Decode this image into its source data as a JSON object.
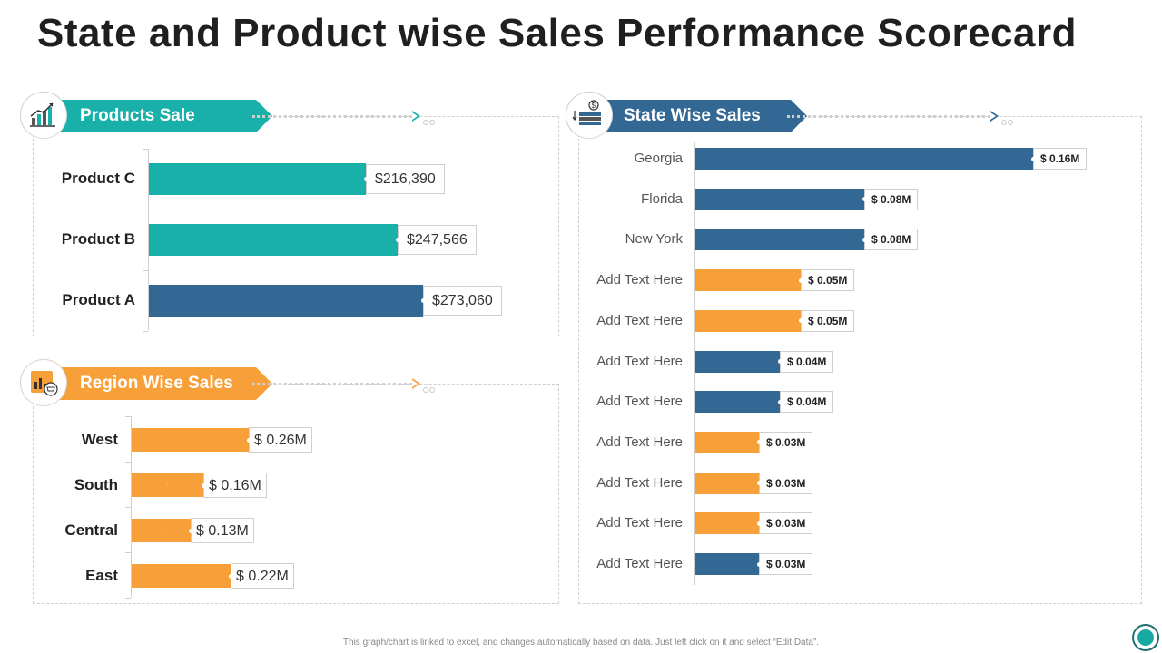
{
  "title": "State and Product wise Sales Performance Scorecard",
  "colors": {
    "teal": "#19b0aa",
    "blue": "#336895",
    "orange": "#f7a03a"
  },
  "products_section": {
    "header": "Products Sale",
    "icon": "growth-chart-icon"
  },
  "region_section": {
    "header": "Region Wise Sales",
    "icon": "bar-chart-cart-icon"
  },
  "state_section": {
    "header": "State Wise Sales",
    "icon": "money-stack-icon"
  },
  "chart_data": [
    {
      "type": "bar",
      "orientation": "horizontal",
      "title": "Products Sale",
      "categories": [
        "Product C",
        "Product B",
        "Product A"
      ],
      "values": [
        216390,
        247566,
        273060
      ],
      "labels": [
        "$216,390",
        "$247,566",
        "$273,060"
      ],
      "bar_colors": [
        "#19b0aa",
        "#19b0aa",
        "#336895"
      ]
    },
    {
      "type": "bar",
      "orientation": "horizontal",
      "title": "Region Wise Sales",
      "categories": [
        "West",
        "South",
        "Central",
        "East"
      ],
      "values": [
        0.26,
        0.16,
        0.13,
        0.22
      ],
      "unit": "$M",
      "labels": [
        "$ 0.26M",
        "$ 0.16M",
        "$ 0.13M",
        "$ 0.22M"
      ],
      "bar_colors": [
        "#f7a03a",
        "#f7a03a",
        "#f7a03a",
        "#f7a03a"
      ]
    },
    {
      "type": "bar",
      "orientation": "horizontal",
      "title": "State Wise Sales",
      "categories": [
        "Georgia",
        "Florida",
        "New York",
        "Add Text Here",
        "Add Text Here",
        "Add Text Here",
        "Add Text Here",
        "Add Text Here",
        "Add Text Here",
        "Add Text Here",
        "Add Text Here"
      ],
      "values": [
        0.16,
        0.08,
        0.08,
        0.05,
        0.05,
        0.04,
        0.04,
        0.03,
        0.03,
        0.03,
        0.03
      ],
      "unit": "$M",
      "labels": [
        "$ 0.16M",
        "$ 0.08M",
        "$ 0.08M",
        "$ 0.05M",
        "$ 0.05M",
        "$ 0.04M",
        "$ 0.04M",
        "$ 0.03M",
        "$ 0.03M",
        "$ 0.03M",
        "$ 0.03M"
      ],
      "bar_colors": [
        "#336895",
        "#336895",
        "#336895",
        "#f7a03a",
        "#f7a03a",
        "#336895",
        "#336895",
        "#f7a03a",
        "#f7a03a",
        "#f7a03a",
        "#336895"
      ]
    }
  ],
  "footer": "This graph/chart is linked to excel, and changes automatically based on data. Just left click on it and select “Edit Data”."
}
